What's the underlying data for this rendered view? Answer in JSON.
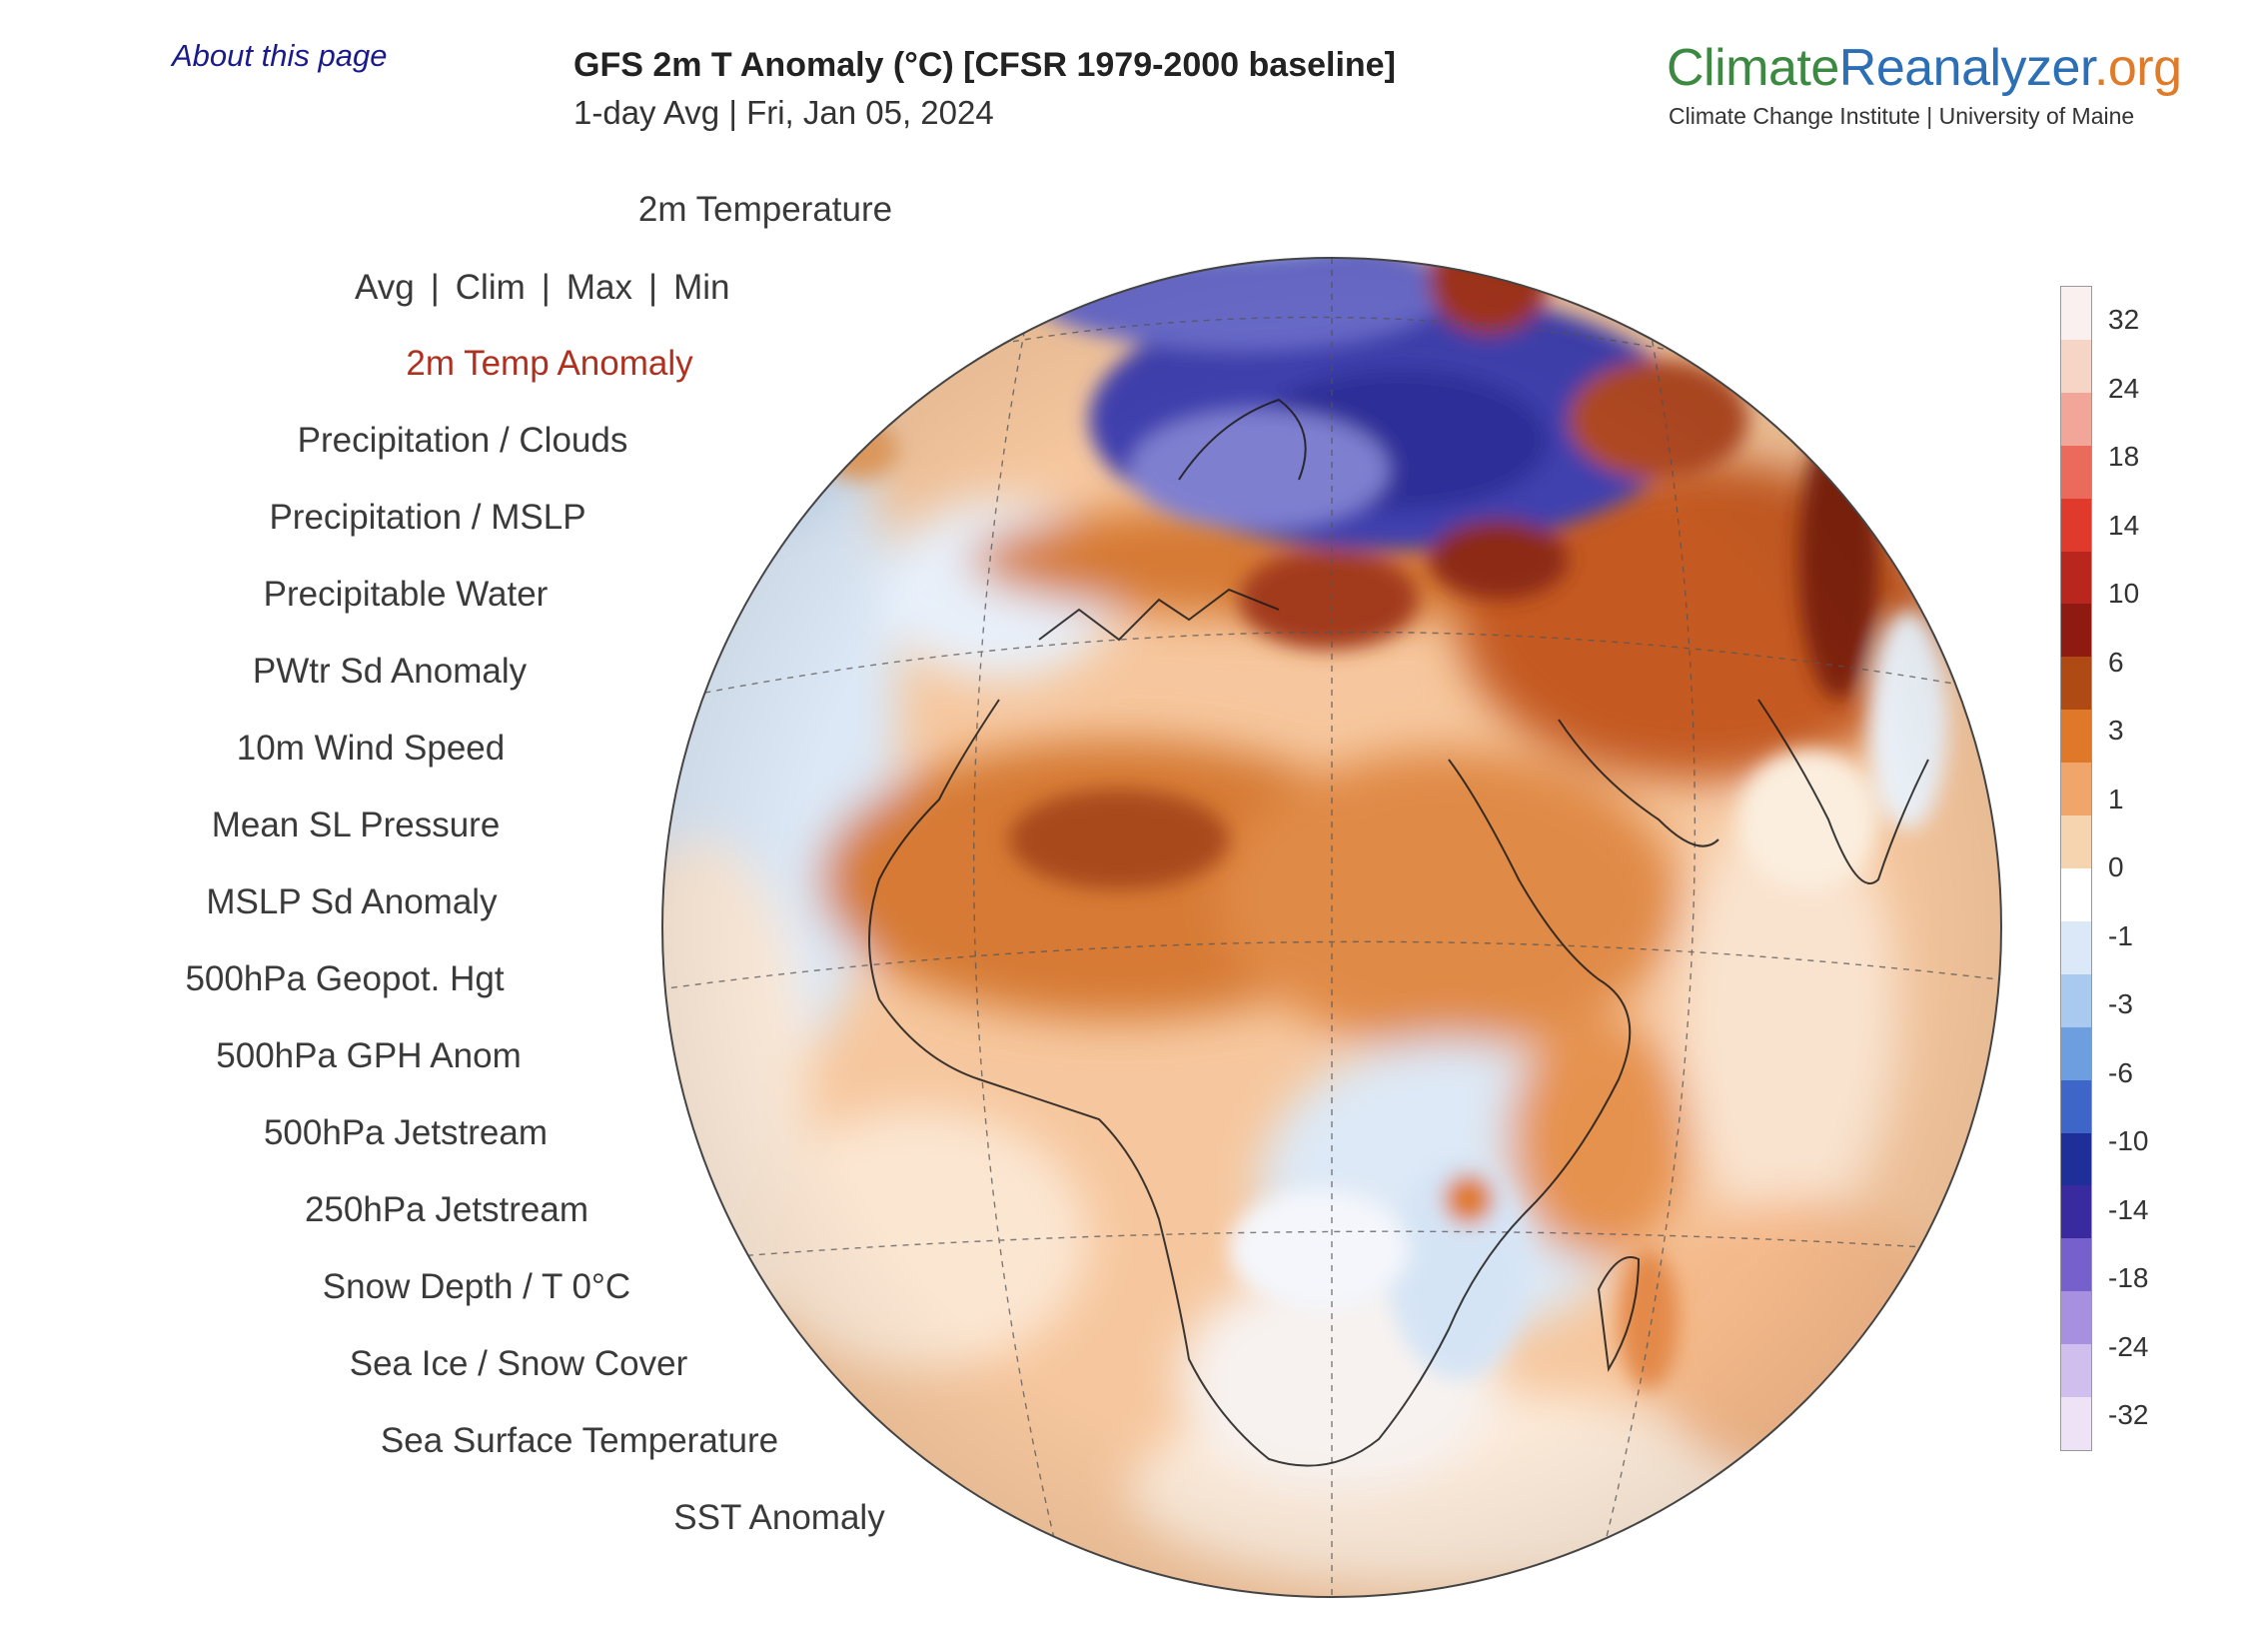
{
  "about_link": "About this page",
  "title": "GFS 2m T Anomaly (°C) [CFSR 1979-2000 baseline]",
  "subtitle": "1-day Avg | Fri, Jan 05, 2024",
  "brand": {
    "part1": "Climate",
    "part2": "Reanalyzer",
    "part3": ".org",
    "subtitle": "Climate Change Institute | University of Maine",
    "colors": {
      "part1": "#3c8a41",
      "part2": "#2c6fb5",
      "part3": "#e07b2a"
    }
  },
  "menu": {
    "top": "2m Temperature",
    "submenu": [
      "Avg",
      "Clim",
      "Max",
      "Min"
    ],
    "items": [
      {
        "label": "2m Temp Anomaly",
        "active": true
      },
      {
        "label": "Precipitation / Clouds"
      },
      {
        "label": "Precipitation / MSLP"
      },
      {
        "label": "Precipitable Water"
      },
      {
        "label": "PWtr Sd Anomaly"
      },
      {
        "label": "10m Wind Speed"
      },
      {
        "label": "Mean SL Pressure"
      },
      {
        "label": "MSLP Sd Anomaly"
      },
      {
        "label": "500hPa Geopot. Hgt"
      },
      {
        "label": "500hPa GPH Anom"
      },
      {
        "label": "500hPa Jetstream"
      },
      {
        "label": "250hPa Jetstream"
      },
      {
        "label": "Snow Depth / T 0°C"
      },
      {
        "label": "Sea Ice / Snow Cover"
      },
      {
        "label": "Sea Surface Temperature"
      },
      {
        "label": "SST Anomaly"
      }
    ]
  },
  "colorbar": {
    "labels": [
      "32",
      "24",
      "18",
      "14",
      "10",
      "6",
      "3",
      "1",
      "0",
      "-1",
      "-3",
      "-6",
      "-10",
      "-14",
      "-18",
      "-24",
      "-32"
    ],
    "colors": [
      "#fbf0f0",
      "#f6d4c6",
      "#f2a69a",
      "#ec6a5c",
      "#e03a2c",
      "#b8261e",
      "#8e1a12",
      "#b04a14",
      "#e0782a",
      "#f0a66a",
      "#f7d4b0",
      "#ffffff",
      "#dbe8f8",
      "#a9c9ef",
      "#6d9fe0",
      "#3e66c8",
      "#1f2f9a",
      "#3a2aa0",
      "#7560cc",
      "#a890e0",
      "#d0bfee",
      "#eee2f6"
    ]
  }
}
